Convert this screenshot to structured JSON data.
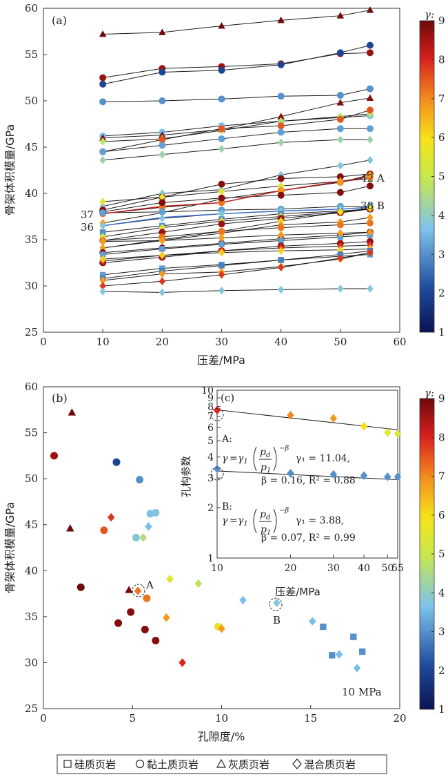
{
  "chart_data": [
    {
      "panel": "(a)",
      "type": "line",
      "xlabel": "压差/MPa",
      "ylabel": "骨架体积模量/GPa",
      "xlim": [
        0,
        60
      ],
      "ylim": [
        25,
        60
      ],
      "xticks": [
        0,
        10,
        20,
        30,
        40,
        50,
        60
      ],
      "yticks": [
        25,
        30,
        35,
        40,
        45,
        50,
        55,
        60
      ],
      "x": [
        10,
        20,
        30,
        40,
        50,
        55
      ],
      "colorbar": {
        "title": "γ:",
        "range": [
          1,
          9
        ],
        "ticks": [
          1,
          2,
          3,
          4,
          5,
          6,
          7,
          8,
          9
        ]
      },
      "annotations": [
        {
          "text": "42 A"
        },
        {
          "text": "38 B"
        },
        {
          "text": "37"
        },
        {
          "text": "36"
        }
      ],
      "series": [
        {
          "marker": "triangle",
          "gamma": 9,
          "values": [
            57.2,
            57.4,
            58.1,
            58.7,
            59.2,
            59.8
          ]
        },
        {
          "marker": "circle",
          "gamma": 8.6,
          "values": [
            52.5,
            53.5,
            53.7,
            54.0,
            55.1,
            55.2
          ]
        },
        {
          "marker": "circle",
          "gamma": 2,
          "values": [
            51.8,
            53.1,
            53.3,
            53.9,
            55.2,
            56.0
          ]
        },
        {
          "marker": "circle",
          "gamma": 3,
          "values": [
            49.9,
            50.0,
            50.2,
            50.5,
            50.6,
            51.3
          ]
        },
        {
          "marker": "circle",
          "gamma": 3.6,
          "values": [
            46.2,
            46.6,
            47.3,
            47.8,
            48.2,
            48.4
          ]
        },
        {
          "marker": "triangle",
          "gamma": 8.8,
          "values": [
            46.0,
            46.3,
            46.9,
            48.3,
            49.8,
            50.3
          ]
        },
        {
          "marker": "diamond",
          "gamma": 4.8,
          "values": [
            45.6,
            45.9,
            46.8,
            47.8,
            48.3,
            48.6
          ]
        },
        {
          "marker": "circle",
          "gamma": 7.5,
          "values": [
            44.5,
            45.8,
            47.0,
            47.3,
            48.0,
            49.0
          ]
        },
        {
          "marker": "circle",
          "gamma": 3.2,
          "values": [
            44.5,
            45.2,
            45.9,
            46.6,
            47.0,
            47.0
          ]
        },
        {
          "marker": "diamond",
          "gamma": 4.2,
          "values": [
            43.6,
            44.2,
            44.8,
            45.5,
            45.8,
            45.8
          ]
        },
        {
          "marker": "diamond",
          "gamma": 3.8,
          "values": [
            38.6,
            40.0,
            40.4,
            42.0,
            43.0,
            43.6
          ]
        },
        {
          "marker": "circle",
          "gamma": 8.8,
          "values": [
            38.2,
            39.6,
            41.0,
            41.6,
            41.8,
            42.1
          ]
        },
        {
          "marker": "diamond",
          "gamma": 5.5,
          "values": [
            39.1,
            39.6,
            40.2,
            40.8,
            41.3,
            41.6
          ]
        },
        {
          "marker": "circle",
          "gamma": 7.2,
          "values": [
            37.8,
            38.5,
            39.0,
            40.3,
            41.2,
            41.8
          ]
        },
        {
          "marker": "diamond",
          "gamma": 6.8,
          "values": [
            36.8,
            37.9,
            39.4,
            40.3,
            41.2,
            42.0
          ]
        },
        {
          "marker": "circle",
          "gamma": 8.8,
          "values": [
            38.0,
            39.0,
            39.5,
            39.8,
            40.1,
            40.8
          ]
        },
        {
          "marker": "circle",
          "gamma": 3.2,
          "values": [
            37.9,
            38.0,
            38.2,
            38.3,
            38.6,
            38.6
          ]
        },
        {
          "marker": "diamond",
          "gamma": 3.8,
          "values": [
            36.5,
            37.3,
            37.8,
            38.1,
            38.3,
            38.5
          ]
        },
        {
          "marker": "square",
          "gamma": 3,
          "values": [
            35.8,
            36.5,
            37.2,
            37.8,
            38.1,
            38.3
          ]
        },
        {
          "marker": "diamond",
          "gamma": 5.5,
          "values": [
            35.3,
            36.3,
            37.0,
            37.5,
            38.0,
            38.3
          ]
        },
        {
          "marker": "circle",
          "gamma": 8.6,
          "values": [
            34.9,
            35.8,
            36.7,
            37.3,
            37.9,
            38.3
          ]
        },
        {
          "marker": "diamond",
          "gamma": 6,
          "values": [
            34.1,
            35.0,
            35.9,
            37.0,
            38.0,
            38.4
          ]
        },
        {
          "marker": "diamond",
          "gamma": 6.8,
          "values": [
            34.1,
            34.9,
            35.7,
            36.6,
            36.9,
            37.4
          ]
        },
        {
          "marker": "circle",
          "gamma": 7.2,
          "values": [
            34.9,
            35.3,
            35.9,
            36.3,
            36.6,
            36.8
          ]
        },
        {
          "marker": "circle",
          "gamma": 8.8,
          "values": [
            33.6,
            34.1,
            34.6,
            35.1,
            35.5,
            35.8
          ]
        },
        {
          "marker": "square",
          "gamma": 3.2,
          "values": [
            33.4,
            34.0,
            34.5,
            34.9,
            35.3,
            35.5
          ]
        },
        {
          "marker": "diamond",
          "gamma": 6.8,
          "values": [
            34.8,
            34.9,
            35.2,
            35.5,
            35.7,
            35.8
          ]
        },
        {
          "marker": "circle",
          "gamma": 8.6,
          "values": [
            32.5,
            33.1,
            33.8,
            34.3,
            34.6,
            34.8
          ]
        },
        {
          "marker": "diamond",
          "gamma": 7.8,
          "values": [
            32.7,
            33.3,
            33.8,
            34.1,
            34.3,
            34.4
          ]
        },
        {
          "marker": "diamond",
          "gamma": 6.2,
          "values": [
            32.9,
            33.3,
            33.6,
            33.8,
            33.9,
            34.0
          ]
        },
        {
          "marker": "square",
          "gamma": 3.2,
          "values": [
            31.2,
            31.9,
            32.3,
            32.8,
            33.2,
            33.4
          ]
        },
        {
          "marker": "square",
          "gamma": 2.8,
          "values": [
            30.8,
            31.6,
            32.2,
            32.8,
            33.4,
            33.8
          ]
        },
        {
          "marker": "diamond",
          "gamma": 6.8,
          "values": [
            30.6,
            31.3,
            31.5,
            32.1,
            32.9,
            33.6
          ]
        },
        {
          "marker": "diamond",
          "gamma": 7.8,
          "values": [
            30.0,
            30.5,
            31.2,
            32.0,
            33.0,
            33.6
          ]
        },
        {
          "marker": "diamond",
          "gamma": 3.8,
          "values": [
            29.4,
            29.3,
            29.5,
            29.6,
            29.7,
            29.7
          ]
        }
      ],
      "highlight": [
        {
          "label": "42 A",
          "color": "#c02020",
          "values": [
            37.8,
            38.6,
            39.0,
            40.3,
            41.3,
            41.8
          ]
        },
        {
          "label": "38 B",
          "color": "#3a6fcc",
          "values": [
            36.5,
            37.4,
            37.8,
            38.1,
            38.3,
            38.5
          ]
        }
      ]
    },
    {
      "panel": "(b)",
      "type": "scatter",
      "xlabel": "孔隙度/%",
      "ylabel": "骨架体积模量/GPa",
      "xlim": [
        0,
        20
      ],
      "ylim": [
        25,
        60
      ],
      "xticks": [
        0,
        5,
        10,
        15,
        20
      ],
      "yticks": [
        25,
        30,
        35,
        40,
        45,
        50,
        55,
        60
      ],
      "annotations": [
        {
          "text": "10 MPa"
        },
        {
          "text": "A"
        },
        {
          "text": "B"
        }
      ],
      "points": [
        {
          "x": 1.6,
          "y": 57.2,
          "marker": "triangle",
          "gamma": 9
        },
        {
          "x": 1.5,
          "y": 44.6,
          "marker": "triangle",
          "gamma": 9
        },
        {
          "x": 4.8,
          "y": 37.9,
          "marker": "triangle",
          "gamma": 9
        },
        {
          "x": 0.6,
          "y": 52.5,
          "marker": "circle",
          "gamma": 8.6
        },
        {
          "x": 4.1,
          "y": 51.8,
          "marker": "circle",
          "gamma": 2
        },
        {
          "x": 5.4,
          "y": 49.9,
          "marker": "circle",
          "gamma": 3
        },
        {
          "x": 3.4,
          "y": 44.4,
          "marker": "circle",
          "gamma": 7.5
        },
        {
          "x": 6.0,
          "y": 46.2,
          "marker": "circle",
          "gamma": 3.6
        },
        {
          "x": 6.3,
          "y": 46.3,
          "marker": "circle",
          "gamma": 3.8
        },
        {
          "x": 5.2,
          "y": 43.6,
          "marker": "circle",
          "gamma": 3.8
        },
        {
          "x": 2.1,
          "y": 38.2,
          "marker": "circle",
          "gamma": 9
        },
        {
          "x": 5.8,
          "y": 37.0,
          "marker": "circle",
          "gamma": 7.2
        },
        {
          "x": 4.9,
          "y": 35.5,
          "marker": "circle",
          "gamma": 8.8
        },
        {
          "x": 4.2,
          "y": 34.3,
          "marker": "circle",
          "gamma": 8.8
        },
        {
          "x": 5.7,
          "y": 33.6,
          "marker": "circle",
          "gamma": 8.8
        },
        {
          "x": 6.3,
          "y": 32.4,
          "marker": "circle",
          "gamma": 8.8
        },
        {
          "x": 9.8,
          "y": 33.9,
          "marker": "circle",
          "gamma": 5.6
        },
        {
          "x": 3.8,
          "y": 45.8,
          "marker": "diamond",
          "gamma": 7.8
        },
        {
          "x": 5.6,
          "y": 43.6,
          "marker": "diamond",
          "gamma": 4.6
        },
        {
          "x": 5.9,
          "y": 44.8,
          "marker": "diamond",
          "gamma": 3.6
        },
        {
          "x": 7.1,
          "y": 39.1,
          "marker": "diamond",
          "gamma": 5.5
        },
        {
          "x": 8.7,
          "y": 38.6,
          "marker": "diamond",
          "gamma": 4.8
        },
        {
          "x": 5.3,
          "y": 37.8,
          "marker": "diamond",
          "gamma": 7.2
        },
        {
          "x": 6.9,
          "y": 34.9,
          "marker": "diamond",
          "gamma": 6.8
        },
        {
          "x": 10.0,
          "y": 33.7,
          "marker": "diamond",
          "gamma": 6.8
        },
        {
          "x": 7.8,
          "y": 30.0,
          "marker": "diamond",
          "gamma": 8
        },
        {
          "x": 11.2,
          "y": 36.8,
          "marker": "diamond",
          "gamma": 3.6
        },
        {
          "x": 13.1,
          "y": 36.5,
          "marker": "diamond",
          "gamma": 3.8
        },
        {
          "x": 15.1,
          "y": 34.5,
          "marker": "diamond",
          "gamma": 3.6
        },
        {
          "x": 16.6,
          "y": 30.9,
          "marker": "diamond",
          "gamma": 3.6
        },
        {
          "x": 17.6,
          "y": 29.4,
          "marker": "diamond",
          "gamma": 3.6
        },
        {
          "x": 15.7,
          "y": 33.9,
          "marker": "square",
          "gamma": 3
        },
        {
          "x": 16.2,
          "y": 30.8,
          "marker": "square",
          "gamma": 3
        },
        {
          "x": 17.4,
          "y": 32.8,
          "marker": "square",
          "gamma": 3
        },
        {
          "x": 17.9,
          "y": 31.2,
          "marker": "square",
          "gamma": 3
        }
      ],
      "colorbar": {
        "title": "γ:",
        "range": [
          1,
          9
        ],
        "ticks": [
          1,
          2,
          3,
          4,
          5,
          6,
          7,
          8,
          9
        ]
      }
    },
    {
      "panel": "(c)",
      "type": "scatter",
      "scale": "log-log",
      "xlabel": "压差/MPa",
      "ylabel": "孔构参数",
      "xlim": [
        10,
        55
      ],
      "ylim": [
        1,
        10
      ],
      "xticks": [
        10,
        20,
        30,
        40,
        50,
        55
      ],
      "yticks": [
        1,
        2,
        3,
        4,
        5,
        6,
        7,
        8,
        9,
        10
      ],
      "series": [
        {
          "name": "A",
          "x": [
            10,
            20,
            30,
            40,
            50,
            55
          ],
          "values": [
            7.6,
            7.1,
            6.8,
            6.1,
            5.6,
            5.5
          ],
          "fit": {
            "gamma1": 11.04,
            "beta": 0.16
          }
        },
        {
          "name": "B",
          "x": [
            10,
            20,
            30,
            40,
            50,
            55
          ],
          "values": [
            3.4,
            3.2,
            3.15,
            3.1,
            3.05,
            3.05
          ],
          "fit": {
            "gamma1": 3.88,
            "beta": 0.07
          }
        }
      ],
      "annotations": {
        "A_label": "A:",
        "B_label": "B:",
        "A_line1": "γ₁ = 11.04,",
        "A_line2": "β = 0.16, R² = 0.88",
        "B_line1": "γ₁ = 3.88,",
        "B_line2": "β = 0.07, R² = 0.99"
      }
    }
  ],
  "legend": {
    "items": [
      {
        "marker": "square",
        "label": "硅质页岩"
      },
      {
        "marker": "circle",
        "label": "黏土质页岩"
      },
      {
        "marker": "triangle",
        "label": "灰质页岩"
      },
      {
        "marker": "diamond",
        "label": "混合质页岩"
      }
    ]
  },
  "colorbar": {
    "title": "γ:",
    "stops": [
      "#0a1352",
      "#1e4b9c",
      "#7cc3ec",
      "#c9e84a",
      "#f7e21a",
      "#f28a1e",
      "#d71f1f",
      "#6e0a0a"
    ]
  }
}
